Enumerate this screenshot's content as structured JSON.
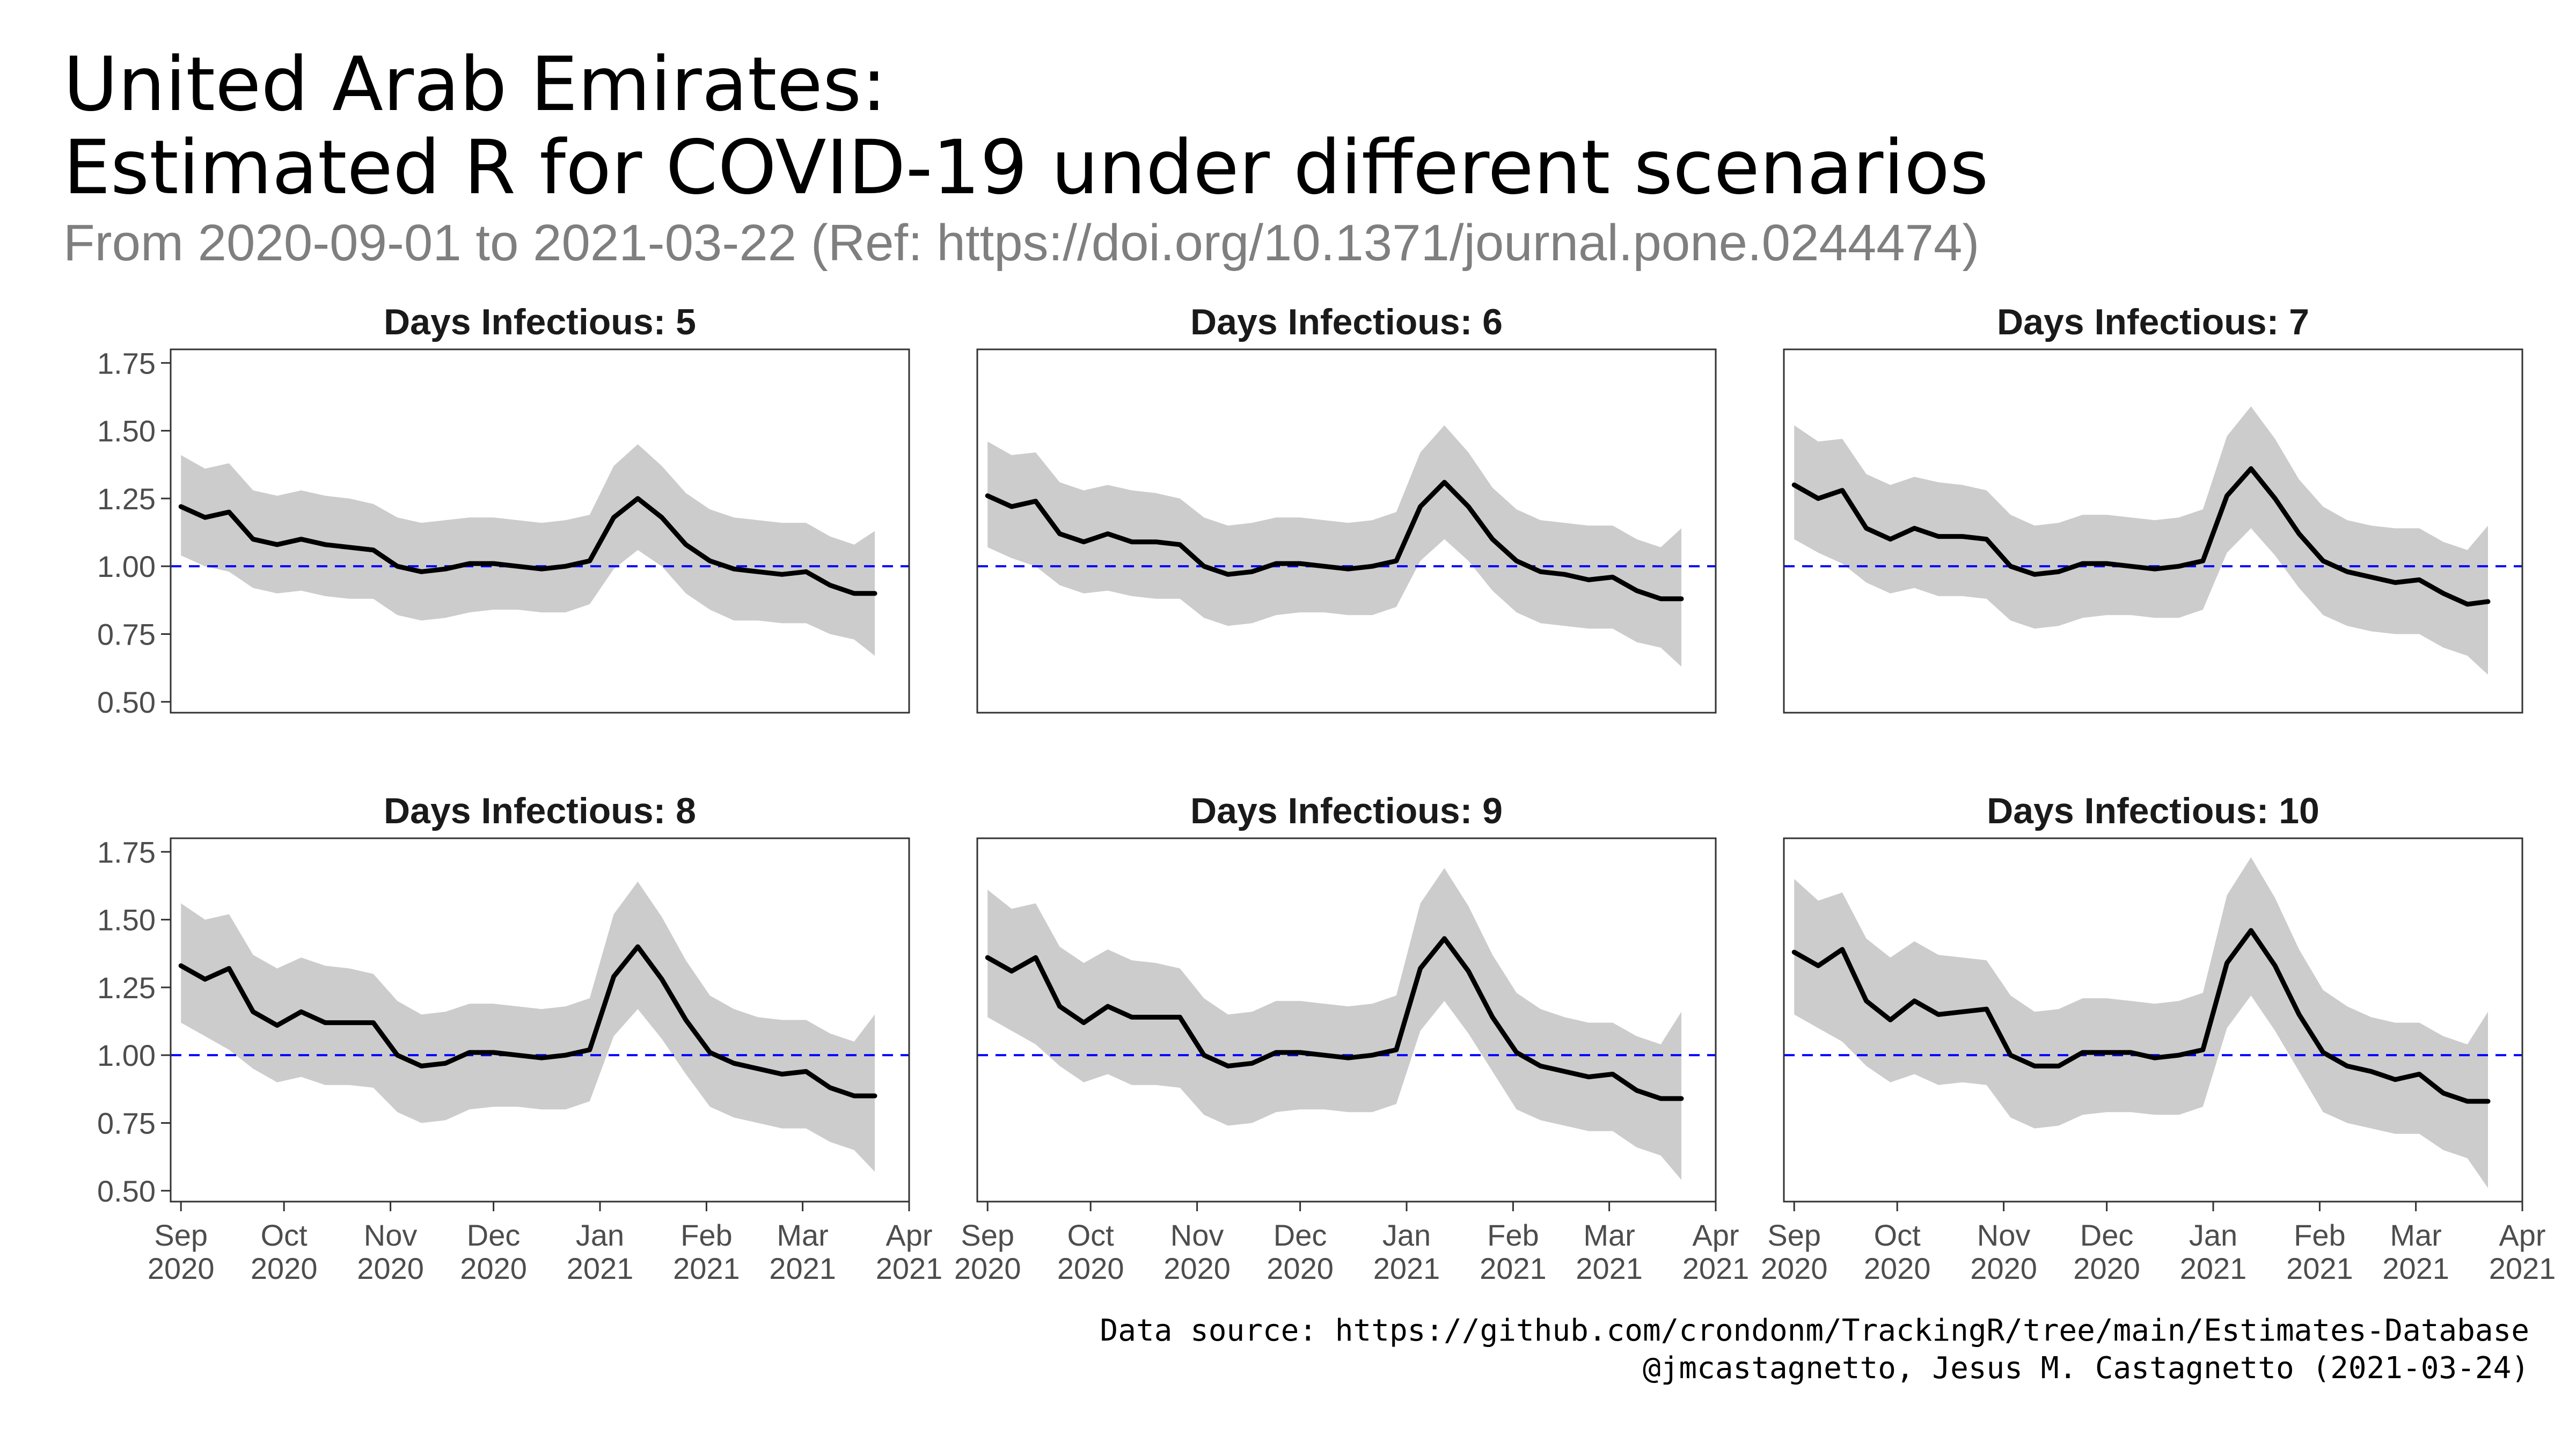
{
  "header": {
    "title_line1": "United Arab Emirates:",
    "title_line2": "Estimated R for COVID-19 under different scenarios",
    "subtitle": "From 2020-09-01 to 2021-03-22 (Ref: https://doi.org/10.1371/journal.pone.0244474)"
  },
  "caption": {
    "line1": "Data source: https://github.com/crondonm/TrackingR/tree/main/Estimates-Database",
    "line2": "@jmcastagnetto, Jesus M. Castagnetto (2021-03-24)"
  },
  "colors": {
    "line": "#000000",
    "ribbon": "#cccccc",
    "reference": "#0000ff",
    "panel_border": "#333333",
    "axis_text": "#4d4d4d"
  },
  "chart_data": {
    "type": "line",
    "facet_label_prefix": "Days Infectious: ",
    "x_range": [
      "2020-08-29",
      "2021-04-01"
    ],
    "x_ticks": [
      {
        "date": "2020-09-01",
        "label": [
          "Sep",
          "2020"
        ]
      },
      {
        "date": "2020-10-01",
        "label": [
          "Oct",
          "2020"
        ]
      },
      {
        "date": "2020-11-01",
        "label": [
          "Nov",
          "2020"
        ]
      },
      {
        "date": "2020-12-01",
        "label": [
          "Dec",
          "2020"
        ]
      },
      {
        "date": "2021-01-01",
        "label": [
          "Jan",
          "2021"
        ]
      },
      {
        "date": "2021-02-01",
        "label": [
          "Feb",
          "2021"
        ]
      },
      {
        "date": "2021-03-01",
        "label": [
          "Mar",
          "2021"
        ]
      },
      {
        "date": "2021-04-01",
        "label": [
          "Apr",
          "2021"
        ]
      }
    ],
    "ylim": [
      0.46,
      1.8
    ],
    "y_ticks": [
      0.5,
      0.75,
      1.0,
      1.25,
      1.5,
      1.75
    ],
    "y_tick_labels": [
      "0.50",
      "0.75",
      "1.00",
      "1.25",
      "1.50",
      "1.75"
    ],
    "reference_line": 1.0,
    "dates": [
      "2020-09-01",
      "2020-09-08",
      "2020-09-15",
      "2020-09-22",
      "2020-09-29",
      "2020-10-06",
      "2020-10-13",
      "2020-10-20",
      "2020-10-27",
      "2020-11-03",
      "2020-11-10",
      "2020-11-17",
      "2020-11-24",
      "2020-12-01",
      "2020-12-08",
      "2020-12-15",
      "2020-12-22",
      "2020-12-29",
      "2021-01-05",
      "2021-01-12",
      "2021-01-19",
      "2021-01-26",
      "2021-02-02",
      "2021-02-09",
      "2021-02-16",
      "2021-02-23",
      "2021-03-02",
      "2021-03-09",
      "2021-03-16",
      "2021-03-22"
    ],
    "panels": [
      {
        "days": 5,
        "r": [
          1.22,
          1.18,
          1.2,
          1.1,
          1.08,
          1.1,
          1.08,
          1.07,
          1.06,
          1.0,
          0.98,
          0.99,
          1.01,
          1.01,
          1.0,
          0.99,
          1.0,
          1.02,
          1.18,
          1.25,
          1.18,
          1.08,
          1.02,
          0.99,
          0.98,
          0.97,
          0.98,
          0.93,
          0.9,
          0.9
        ],
        "lower": [
          1.04,
          1.0,
          0.98,
          0.92,
          0.9,
          0.91,
          0.89,
          0.88,
          0.88,
          0.82,
          0.8,
          0.81,
          0.83,
          0.84,
          0.84,
          0.83,
          0.83,
          0.86,
          0.99,
          1.06,
          1.0,
          0.9,
          0.84,
          0.8,
          0.8,
          0.79,
          0.79,
          0.75,
          0.73,
          0.67
        ],
        "upper": [
          1.41,
          1.36,
          1.38,
          1.28,
          1.26,
          1.28,
          1.26,
          1.25,
          1.23,
          1.18,
          1.16,
          1.17,
          1.18,
          1.18,
          1.17,
          1.16,
          1.17,
          1.19,
          1.37,
          1.45,
          1.37,
          1.27,
          1.21,
          1.18,
          1.17,
          1.16,
          1.16,
          1.11,
          1.08,
          1.13
        ]
      },
      {
        "days": 6,
        "r": [
          1.26,
          1.22,
          1.24,
          1.12,
          1.09,
          1.12,
          1.09,
          1.09,
          1.08,
          1.0,
          0.97,
          0.98,
          1.01,
          1.01,
          1.0,
          0.99,
          1.0,
          1.02,
          1.22,
          1.31,
          1.22,
          1.1,
          1.02,
          0.98,
          0.97,
          0.95,
          0.96,
          0.91,
          0.88,
          0.88
        ],
        "lower": [
          1.07,
          1.03,
          1.0,
          0.93,
          0.9,
          0.91,
          0.89,
          0.88,
          0.88,
          0.81,
          0.78,
          0.79,
          0.82,
          0.83,
          0.83,
          0.82,
          0.82,
          0.85,
          1.02,
          1.1,
          1.02,
          0.91,
          0.83,
          0.79,
          0.78,
          0.77,
          0.77,
          0.72,
          0.7,
          0.63
        ],
        "upper": [
          1.46,
          1.41,
          1.42,
          1.31,
          1.28,
          1.3,
          1.28,
          1.27,
          1.25,
          1.18,
          1.15,
          1.16,
          1.18,
          1.18,
          1.17,
          1.16,
          1.17,
          1.2,
          1.42,
          1.52,
          1.42,
          1.29,
          1.21,
          1.17,
          1.16,
          1.15,
          1.15,
          1.1,
          1.07,
          1.14
        ]
      },
      {
        "days": 7,
        "r": [
          1.3,
          1.25,
          1.28,
          1.14,
          1.1,
          1.14,
          1.11,
          1.11,
          1.1,
          1.0,
          0.97,
          0.98,
          1.01,
          1.01,
          1.0,
          0.99,
          1.0,
          1.02,
          1.26,
          1.36,
          1.25,
          1.12,
          1.02,
          0.98,
          0.96,
          0.94,
          0.95,
          0.9,
          0.86,
          0.87
        ],
        "lower": [
          1.1,
          1.05,
          1.01,
          0.94,
          0.9,
          0.92,
          0.89,
          0.89,
          0.88,
          0.8,
          0.77,
          0.78,
          0.81,
          0.82,
          0.82,
          0.81,
          0.81,
          0.84,
          1.05,
          1.14,
          1.04,
          0.92,
          0.82,
          0.78,
          0.76,
          0.75,
          0.75,
          0.7,
          0.67,
          0.6
        ],
        "upper": [
          1.52,
          1.46,
          1.47,
          1.34,
          1.3,
          1.33,
          1.31,
          1.3,
          1.28,
          1.19,
          1.15,
          1.16,
          1.19,
          1.19,
          1.18,
          1.17,
          1.18,
          1.21,
          1.48,
          1.59,
          1.47,
          1.32,
          1.22,
          1.17,
          1.15,
          1.14,
          1.14,
          1.09,
          1.06,
          1.15
        ]
      },
      {
        "days": 8,
        "r": [
          1.33,
          1.28,
          1.32,
          1.16,
          1.11,
          1.16,
          1.12,
          1.12,
          1.12,
          1.0,
          0.96,
          0.97,
          1.01,
          1.01,
          1.0,
          0.99,
          1.0,
          1.02,
          1.29,
          1.4,
          1.28,
          1.13,
          1.01,
          0.97,
          0.95,
          0.93,
          0.94,
          0.88,
          0.85,
          0.85
        ],
        "lower": [
          1.12,
          1.07,
          1.02,
          0.95,
          0.9,
          0.92,
          0.89,
          0.89,
          0.88,
          0.79,
          0.75,
          0.76,
          0.8,
          0.81,
          0.81,
          0.8,
          0.8,
          0.83,
          1.07,
          1.17,
          1.06,
          0.93,
          0.81,
          0.77,
          0.75,
          0.73,
          0.73,
          0.68,
          0.65,
          0.57
        ],
        "upper": [
          1.56,
          1.5,
          1.52,
          1.37,
          1.32,
          1.36,
          1.33,
          1.32,
          1.3,
          1.2,
          1.15,
          1.16,
          1.19,
          1.19,
          1.18,
          1.17,
          1.18,
          1.21,
          1.52,
          1.64,
          1.51,
          1.35,
          1.22,
          1.17,
          1.14,
          1.13,
          1.13,
          1.08,
          1.05,
          1.15
        ]
      },
      {
        "days": 9,
        "r": [
          1.36,
          1.31,
          1.36,
          1.18,
          1.12,
          1.18,
          1.14,
          1.14,
          1.14,
          1.0,
          0.96,
          0.97,
          1.01,
          1.01,
          1.0,
          0.99,
          1.0,
          1.02,
          1.32,
          1.43,
          1.31,
          1.14,
          1.01,
          0.96,
          0.94,
          0.92,
          0.93,
          0.87,
          0.84,
          0.84
        ],
        "lower": [
          1.14,
          1.09,
          1.04,
          0.96,
          0.9,
          0.93,
          0.89,
          0.89,
          0.88,
          0.78,
          0.74,
          0.75,
          0.79,
          0.8,
          0.8,
          0.79,
          0.79,
          0.82,
          1.09,
          1.2,
          1.08,
          0.94,
          0.8,
          0.76,
          0.74,
          0.72,
          0.72,
          0.66,
          0.63,
          0.54
        ],
        "upper": [
          1.61,
          1.54,
          1.56,
          1.4,
          1.34,
          1.39,
          1.35,
          1.34,
          1.32,
          1.21,
          1.15,
          1.16,
          1.2,
          1.2,
          1.19,
          1.18,
          1.19,
          1.22,
          1.56,
          1.69,
          1.55,
          1.37,
          1.23,
          1.17,
          1.14,
          1.12,
          1.12,
          1.07,
          1.04,
          1.16
        ]
      },
      {
        "days": 10,
        "r": [
          1.38,
          1.33,
          1.39,
          1.2,
          1.13,
          1.2,
          1.15,
          1.16,
          1.17,
          1.0,
          0.96,
          0.96,
          1.01,
          1.01,
          1.01,
          0.99,
          1.0,
          1.02,
          1.34,
          1.46,
          1.33,
          1.15,
          1.01,
          0.96,
          0.94,
          0.91,
          0.93,
          0.86,
          0.83,
          0.83
        ],
        "lower": [
          1.15,
          1.1,
          1.05,
          0.96,
          0.9,
          0.93,
          0.89,
          0.9,
          0.89,
          0.77,
          0.73,
          0.74,
          0.78,
          0.79,
          0.79,
          0.78,
          0.78,
          0.81,
          1.1,
          1.22,
          1.09,
          0.94,
          0.79,
          0.75,
          0.73,
          0.71,
          0.71,
          0.65,
          0.62,
          0.51
        ],
        "upper": [
          1.65,
          1.57,
          1.6,
          1.43,
          1.36,
          1.42,
          1.37,
          1.36,
          1.35,
          1.22,
          1.16,
          1.17,
          1.21,
          1.21,
          1.2,
          1.19,
          1.2,
          1.23,
          1.59,
          1.73,
          1.58,
          1.39,
          1.24,
          1.18,
          1.14,
          1.12,
          1.12,
          1.07,
          1.04,
          1.16
        ]
      }
    ]
  }
}
